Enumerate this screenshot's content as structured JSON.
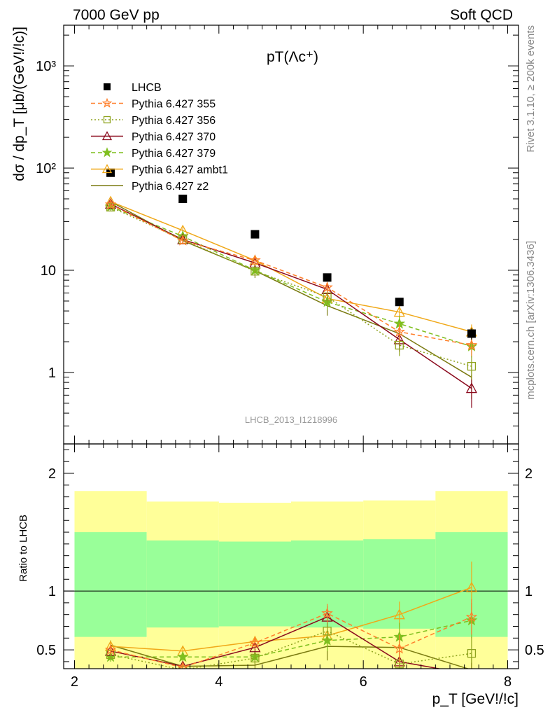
{
  "header": {
    "left": "7000 GeV pp",
    "right": "Soft QCD",
    "title": "pT(Λc⁺)",
    "side_rivet": "Rivet 3.1.10, ≥ 200k events",
    "side_mcplots": "mcplots.cern.ch [arXiv:1306.3436]",
    "watermark": "LHCB_2013_I1218996"
  },
  "colors": {
    "data": "#000000",
    "p355": "#ff7f2a",
    "p356": "#8fa31e",
    "p370": "#8b0a1e",
    "p379": "#7fbf1f",
    "ambt1": "#f0a818",
    "z2": "#7a7a10",
    "band_inner": "#99ff99",
    "band_outer": "#ffff99"
  },
  "chart_data": [
    {
      "type": "line",
      "panel": "main",
      "xlabel": "p_T [GeV!/!c]",
      "ylabel": "dσ / dp_T [μb/(GeV!/!c)]",
      "yscale": "log",
      "xlim": [
        1.85,
        8.15
      ],
      "ylim": [
        0.2,
        2500
      ],
      "x_ticks": [
        "2",
        "4",
        "6",
        "8"
      ],
      "y_ticks": [
        "1",
        "10",
        "10²",
        "10³"
      ],
      "legend_placement": "top-left",
      "x": [
        2.5,
        3.5,
        4.5,
        5.5,
        6.5,
        7.5
      ],
      "series": [
        {
          "name": "LHCB",
          "key": "data",
          "marker": "square-filled",
          "style": "none",
          "values": [
            90.0,
            50.0,
            22.5,
            8.5,
            4.9,
            2.4
          ],
          "errors": [
            5,
            3,
            1.4,
            0.7,
            0.4,
            0.3
          ]
        },
        {
          "name": "Pythia 6.427 355",
          "key": "p355",
          "marker": "star-open",
          "style": "dashed",
          "values": [
            44.0,
            19.5,
            12.5,
            6.8,
            2.5,
            1.85
          ],
          "errors": [
            3,
            1.5,
            1.2,
            0.8,
            0.5,
            0.4
          ]
        },
        {
          "name": "Pythia 6.427 356",
          "key": "p356",
          "marker": "square-open",
          "style": "dotted",
          "values": [
            41.5,
            20.0,
            9.8,
            5.5,
            1.85,
            1.15
          ],
          "errors": [
            3,
            1.5,
            1.0,
            0.8,
            0.4,
            0.3
          ]
        },
        {
          "name": "Pythia 6.427 370",
          "key": "p370",
          "marker": "triangle-open",
          "style": "solid",
          "values": [
            44.5,
            20.0,
            11.8,
            6.5,
            2.1,
            0.7
          ],
          "errors": [
            3,
            1.5,
            1.2,
            0.8,
            0.5,
            0.25
          ]
        },
        {
          "name": "Pythia 6.427 379",
          "key": "p379",
          "marker": "star-filled",
          "style": "dashed",
          "values": [
            42.0,
            21.5,
            10.0,
            4.9,
            3.0,
            1.8
          ],
          "errors": [
            3,
            1.5,
            1.1,
            0.8,
            0.6,
            0.4
          ]
        },
        {
          "name": "Pythia 6.427 ambt1",
          "key": "ambt1",
          "marker": "triangle-open",
          "style": "solid",
          "values": [
            47.0,
            24.5,
            12.5,
            5.3,
            3.9,
            2.5
          ],
          "errors": [
            3,
            1.8,
            1.2,
            0.8,
            0.6,
            0.45
          ]
        },
        {
          "name": "Pythia 6.427 z2",
          "key": "z2",
          "marker": "none",
          "style": "solid",
          "values": [
            47.0,
            19.5,
            9.9,
            4.5,
            2.4,
            0.9
          ],
          "errors": [
            3,
            1.5,
            1.5,
            0.9,
            0.6,
            0.35
          ]
        }
      ]
    },
    {
      "type": "line",
      "panel": "ratio",
      "xlabel": "p_T [GeV!/!c]",
      "ylabel": "Ratio to LHCB",
      "xlim": [
        1.85,
        8.15
      ],
      "ylim": [
        0.34,
        2.25
      ],
      "x_ticks": [
        "2",
        "4",
        "6",
        "8"
      ],
      "y_ticks": [
        "0.5",
        "1",
        "2"
      ],
      "bands": {
        "edges": [
          2,
          3,
          4,
          5,
          6,
          7,
          8
        ],
        "inner": [
          [
            0.61,
            1.5
          ],
          [
            0.69,
            1.43
          ],
          [
            0.7,
            1.42
          ],
          [
            0.69,
            1.43
          ],
          [
            0.68,
            1.44
          ],
          [
            0.61,
            1.5
          ]
        ],
        "outer": [
          [
            0.2,
            1.85
          ],
          [
            0.3,
            1.76
          ],
          [
            0.31,
            1.75
          ],
          [
            0.3,
            1.76
          ],
          [
            0.29,
            1.77
          ],
          [
            0.2,
            1.85
          ]
        ]
      },
      "x": [
        2.5,
        3.5,
        4.5,
        5.5,
        6.5,
        7.5
      ],
      "series": [
        {
          "key": "p355",
          "values": [
            0.5,
            0.35,
            0.56,
            0.81,
            0.51,
            0.78
          ],
          "errors": [
            0.04,
            0.04,
            0.05,
            0.08,
            0.12,
            0.15
          ]
        },
        {
          "key": "p356",
          "values": [
            0.46,
            0.33,
            0.43,
            0.66,
            0.38,
            0.47
          ],
          "errors": [
            0.04,
            0.04,
            0.05,
            0.08,
            0.1,
            0.14
          ]
        },
        {
          "key": "p370",
          "values": [
            0.49,
            0.36,
            0.52,
            0.78,
            0.4,
            0.29
          ],
          "errors": [
            0.04,
            0.04,
            0.05,
            0.09,
            0.1,
            0.1
          ]
        },
        {
          "key": "p379",
          "values": [
            0.44,
            0.44,
            0.44,
            0.58,
            0.61,
            0.75
          ],
          "errors": [
            0.04,
            0.04,
            0.05,
            0.09,
            0.12,
            0.15
          ]
        },
        {
          "key": "ambt1",
          "values": [
            0.53,
            0.49,
            0.57,
            0.62,
            0.8,
            1.03
          ],
          "errors": [
            0.04,
            0.04,
            0.05,
            0.08,
            0.11,
            0.22
          ]
        },
        {
          "key": "z2",
          "values": [
            0.54,
            0.36,
            0.37,
            0.53,
            0.52,
            0.33
          ],
          "errors": [
            0.04,
            0.04,
            0.07,
            0.12,
            0.13,
            0.15
          ]
        }
      ]
    }
  ]
}
